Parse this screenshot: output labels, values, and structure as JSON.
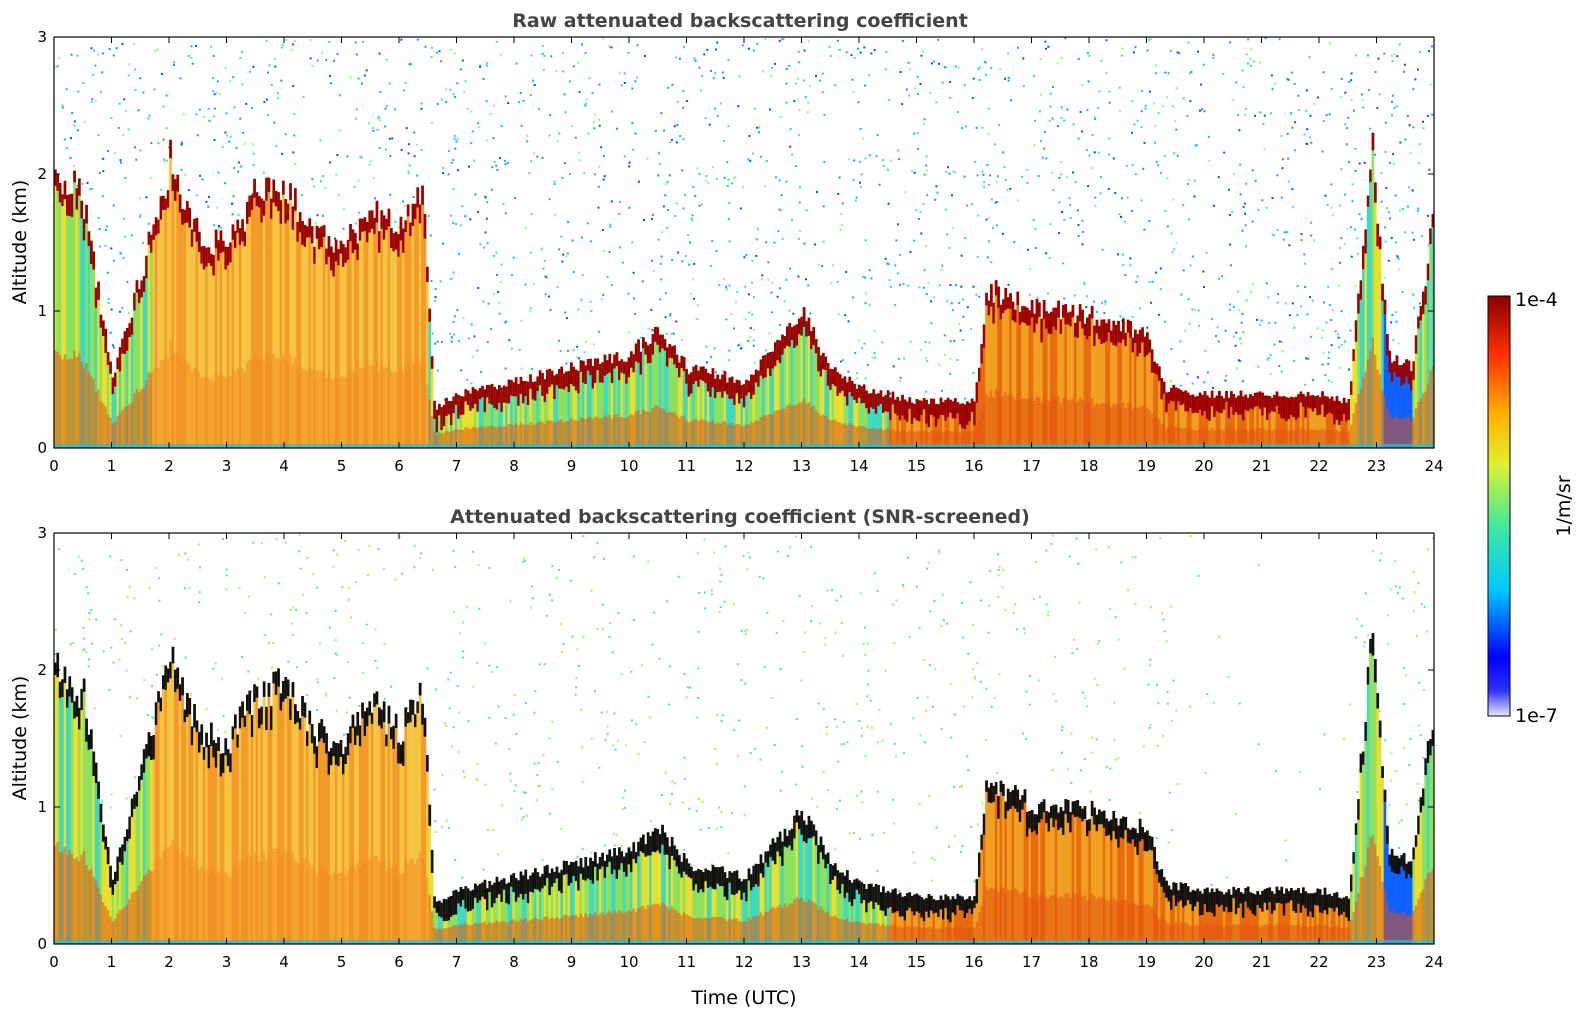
{
  "chart_data": [
    {
      "type": "heatmap",
      "title": "Raw attenuated backscattering coefficient",
      "xlabel": "",
      "ylabel": "Altitude (km)",
      "xlim": [
        0,
        24
      ],
      "ylim": [
        0,
        3
      ],
      "x_ticks": [
        "0",
        "1",
        "2",
        "3",
        "4",
        "5",
        "6",
        "7",
        "8",
        "9",
        "10",
        "11",
        "12",
        "13",
        "14",
        "15",
        "16",
        "17",
        "18",
        "19",
        "20",
        "21",
        "22",
        "23",
        "24"
      ],
      "y_ticks": [
        "0",
        "1",
        "2",
        "3"
      ],
      "layer_top_km": [
        [
          0.0,
          2.1
        ],
        [
          0.5,
          1.85
        ],
        [
          1.0,
          0.5
        ],
        [
          1.5,
          1.3
        ],
        [
          2.0,
          2.15
        ],
        [
          2.5,
          1.6
        ],
        [
          3.0,
          1.5
        ],
        [
          3.5,
          1.9
        ],
        [
          4.0,
          1.95
        ],
        [
          4.5,
          1.6
        ],
        [
          5.0,
          1.5
        ],
        [
          5.5,
          1.8
        ],
        [
          6.0,
          1.6
        ],
        [
          6.4,
          1.9
        ],
        [
          6.6,
          0.3
        ],
        [
          7.0,
          0.4
        ],
        [
          8.0,
          0.5
        ],
        [
          9.0,
          0.6
        ],
        [
          10.0,
          0.7
        ],
        [
          10.5,
          0.9
        ],
        [
          11.0,
          0.6
        ],
        [
          12.0,
          0.5
        ],
        [
          13.0,
          1.0
        ],
        [
          13.5,
          0.6
        ],
        [
          14.0,
          0.45
        ],
        [
          15.0,
          0.35
        ],
        [
          16.0,
          0.35
        ],
        [
          16.2,
          1.2
        ],
        [
          17.0,
          1.05
        ],
        [
          18.0,
          1.0
        ],
        [
          19.0,
          0.85
        ],
        [
          19.3,
          0.45
        ],
        [
          20.0,
          0.4
        ],
        [
          21.0,
          0.4
        ],
        [
          22.0,
          0.4
        ],
        [
          22.5,
          0.35
        ],
        [
          22.9,
          2.3
        ],
        [
          23.2,
          0.7
        ],
        [
          23.6,
          0.6
        ],
        [
          24.0,
          1.8
        ]
      ]
    },
    {
      "type": "heatmap",
      "title": "Attenuated backscattering coefficient (SNR-screened)",
      "xlabel": "Time (UTC)",
      "ylabel": "Altitude (km)",
      "xlim": [
        0,
        24
      ],
      "ylim": [
        0,
        3
      ],
      "x_ticks": [
        "0",
        "1",
        "2",
        "3",
        "4",
        "5",
        "6",
        "7",
        "8",
        "9",
        "10",
        "11",
        "12",
        "13",
        "14",
        "15",
        "16",
        "17",
        "18",
        "19",
        "20",
        "21",
        "22",
        "23",
        "24"
      ],
      "y_ticks": [
        "0",
        "1",
        "2",
        "3"
      ],
      "layer_top_km": [
        [
          0.0,
          2.1
        ],
        [
          0.5,
          1.85
        ],
        [
          1.0,
          0.5
        ],
        [
          1.5,
          1.3
        ],
        [
          2.0,
          2.15
        ],
        [
          2.5,
          1.6
        ],
        [
          3.0,
          1.5
        ],
        [
          3.5,
          1.9
        ],
        [
          4.0,
          1.95
        ],
        [
          4.5,
          1.6
        ],
        [
          5.0,
          1.5
        ],
        [
          5.5,
          1.8
        ],
        [
          6.0,
          1.6
        ],
        [
          6.4,
          1.9
        ],
        [
          6.6,
          0.3
        ],
        [
          7.0,
          0.4
        ],
        [
          8.0,
          0.5
        ],
        [
          9.0,
          0.6
        ],
        [
          10.0,
          0.7
        ],
        [
          10.5,
          0.9
        ],
        [
          11.0,
          0.6
        ],
        [
          12.0,
          0.5
        ],
        [
          13.0,
          1.0
        ],
        [
          13.5,
          0.6
        ],
        [
          14.0,
          0.45
        ],
        [
          15.0,
          0.35
        ],
        [
          16.0,
          0.35
        ],
        [
          16.2,
          1.2
        ],
        [
          17.0,
          1.05
        ],
        [
          18.0,
          1.0
        ],
        [
          19.0,
          0.85
        ],
        [
          19.3,
          0.45
        ],
        [
          20.0,
          0.4
        ],
        [
          21.0,
          0.4
        ],
        [
          22.0,
          0.4
        ],
        [
          22.5,
          0.35
        ],
        [
          22.9,
          2.3
        ],
        [
          23.2,
          0.7
        ],
        [
          23.6,
          0.6
        ],
        [
          24.0,
          1.8
        ]
      ]
    }
  ],
  "colorbar": {
    "label": "1/m/sr",
    "max_label": "1e-4",
    "min_label": "1e-7",
    "scale": "log",
    "colormap": [
      "#e8e8f8",
      "#0000ff",
      "#00c8ff",
      "#40e8a0",
      "#e0f030",
      "#ffb000",
      "#ff3000",
      "#8b0000"
    ]
  }
}
